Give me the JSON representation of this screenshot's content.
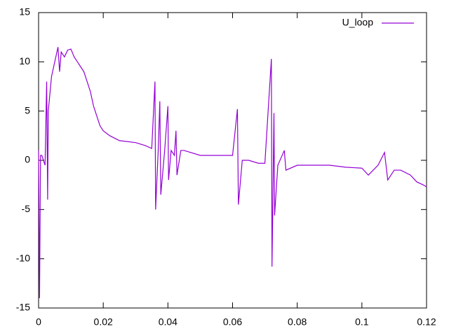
{
  "chart_data": {
    "type": "line",
    "x": [
      0,
      0.0003,
      0.0006,
      0.001,
      0.002,
      0.0025,
      0.0028,
      0.003,
      0.004,
      0.005,
      0.006,
      0.0065,
      0.007,
      0.008,
      0.009,
      0.01,
      0.011,
      0.012,
      0.013,
      0.014,
      0.015,
      0.016,
      0.017,
      0.018,
      0.019,
      0.02,
      0.022,
      0.025,
      0.03,
      0.033,
      0.035,
      0.036,
      0.0362,
      0.037,
      0.0375,
      0.0378,
      0.039,
      0.04,
      0.0402,
      0.041,
      0.042,
      0.0425,
      0.0428,
      0.044,
      0.045,
      0.05,
      0.055,
      0.06,
      0.0615,
      0.0618,
      0.063,
      0.065,
      0.068,
      0.07,
      0.072,
      0.0722,
      0.0728,
      0.073,
      0.074,
      0.076,
      0.0765,
      0.08,
      0.085,
      0.09,
      0.095,
      0.1,
      0.102,
      0.105,
      0.107,
      0.108,
      0.11,
      0.112,
      0.115,
      0.117,
      0.119,
      0.12
    ],
    "series": [
      {
        "name": "U_loop",
        "color": "#9400d3",
        "values": [
          1,
          -14,
          0.5,
          0.5,
          -0.5,
          8,
          -4,
          5,
          8.5,
          10,
          11.5,
          9,
          11,
          10.5,
          11.2,
          11.3,
          10.5,
          10,
          9.5,
          9,
          8,
          7,
          5.5,
          4.5,
          3.5,
          3,
          2.5,
          2,
          1.8,
          1.5,
          1.2,
          8,
          -5,
          1,
          6,
          -3.5,
          1,
          5.5,
          -2,
          1,
          0.5,
          3,
          -1.5,
          1,
          1,
          0.5,
          0.5,
          0.5,
          5.2,
          -4.5,
          0,
          0,
          -0.3,
          -0.3,
          10.3,
          -10.8,
          4.8,
          -5.6,
          -0.5,
          1,
          -1,
          -0.5,
          -0.5,
          -0.5,
          -0.7,
          -0.8,
          -1.5,
          -0.5,
          0.8,
          -2,
          -1,
          -1,
          -1.5,
          -2.2,
          -2.5,
          -2.7
        ]
      }
    ],
    "xlim": [
      0,
      0.12
    ],
    "xticks": [
      0,
      0.02,
      0.04,
      0.06,
      0.08,
      0.1,
      0.12
    ],
    "ylim": [
      -15,
      15
    ],
    "yticks": [
      -15,
      -10,
      -5,
      0,
      5,
      10,
      15
    ],
    "legend": "top-right"
  }
}
